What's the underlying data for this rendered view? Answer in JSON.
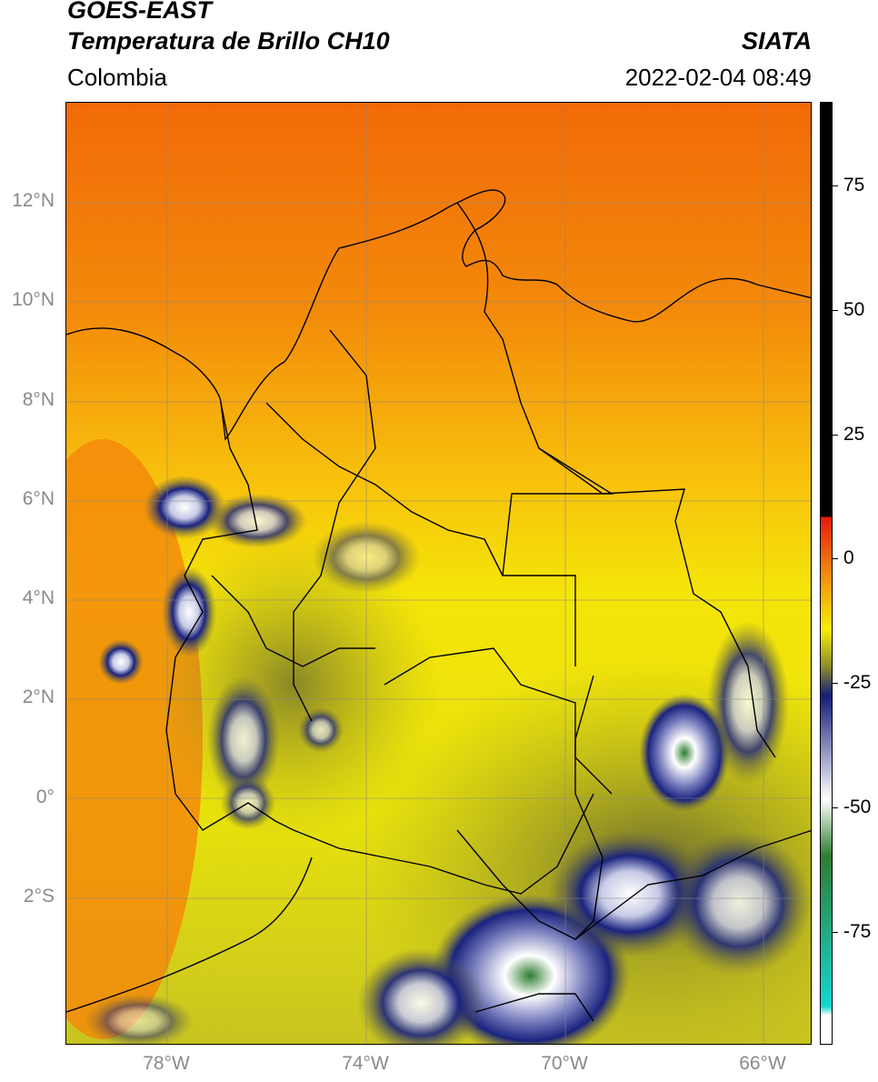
{
  "header": {
    "title_line1": "GOES-EAST",
    "title_line2": "Temperatura de Brillo CH10",
    "source": "SIATA",
    "region": "Colombia",
    "datetime": "2022-02-04 08:49"
  },
  "map": {
    "lat_labels": [
      "12°N",
      "10°N",
      "8°N",
      "6°N",
      "4°N",
      "2°N",
      "0°",
      "2°S"
    ],
    "lon_labels": [
      "78°W",
      "74°W",
      "70°W",
      "66°W"
    ]
  },
  "colorbar": {
    "labels": [
      "75",
      "50",
      "25",
      "0",
      "-25",
      "-50",
      "-75"
    ],
    "colors": {
      "warm_top": "#000000",
      "red": "#e8180c",
      "orange": "#f38a0a",
      "yellow": "#f6ee06",
      "olive": "#8b8a2a",
      "navy": "#141c7a",
      "white": "#ffffff",
      "green": "#2e7d32",
      "cyan": "#12d8d2"
    }
  }
}
